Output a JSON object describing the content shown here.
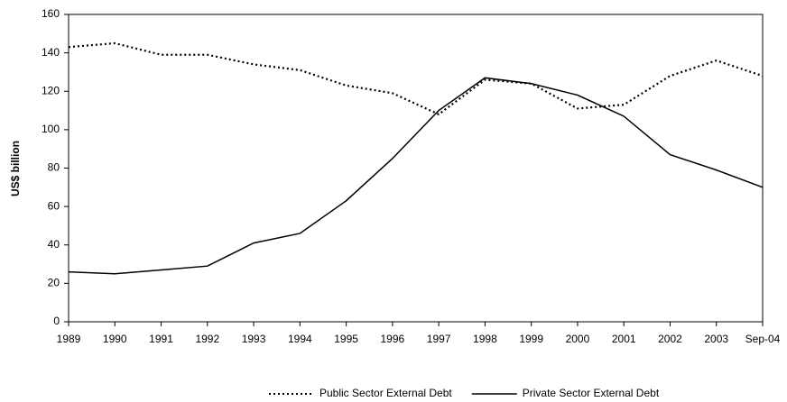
{
  "chart_data": {
    "type": "line",
    "y_label": "US$ billion",
    "categories": [
      "1989",
      "1990",
      "1991",
      "1992",
      "1993",
      "1994",
      "1995",
      "1996",
      "1997",
      "1998",
      "1999",
      "2000",
      "2001",
      "2002",
      "2003",
      "Sep-04"
    ],
    "series": [
      {
        "name": "Public Sector External Debt",
        "color": "#000000",
        "linestyle": "dotted",
        "values": [
          143,
          145,
          139,
          139,
          134,
          131,
          123,
          119,
          108,
          126,
          124,
          111,
          113,
          128,
          136,
          128
        ]
      },
      {
        "name": "Private Sector External Debt",
        "color": "#000000",
        "linestyle": "solid",
        "values": [
          26,
          25,
          27,
          29,
          41,
          46,
          63,
          85,
          110,
          127,
          124,
          118,
          107,
          87,
          79,
          70
        ]
      }
    ],
    "ylim": [
      0,
      160
    ],
    "yticks": [
      0,
      20,
      40,
      60,
      80,
      100,
      120,
      140,
      160
    ],
    "grid": false,
    "legend": "bottom"
  }
}
